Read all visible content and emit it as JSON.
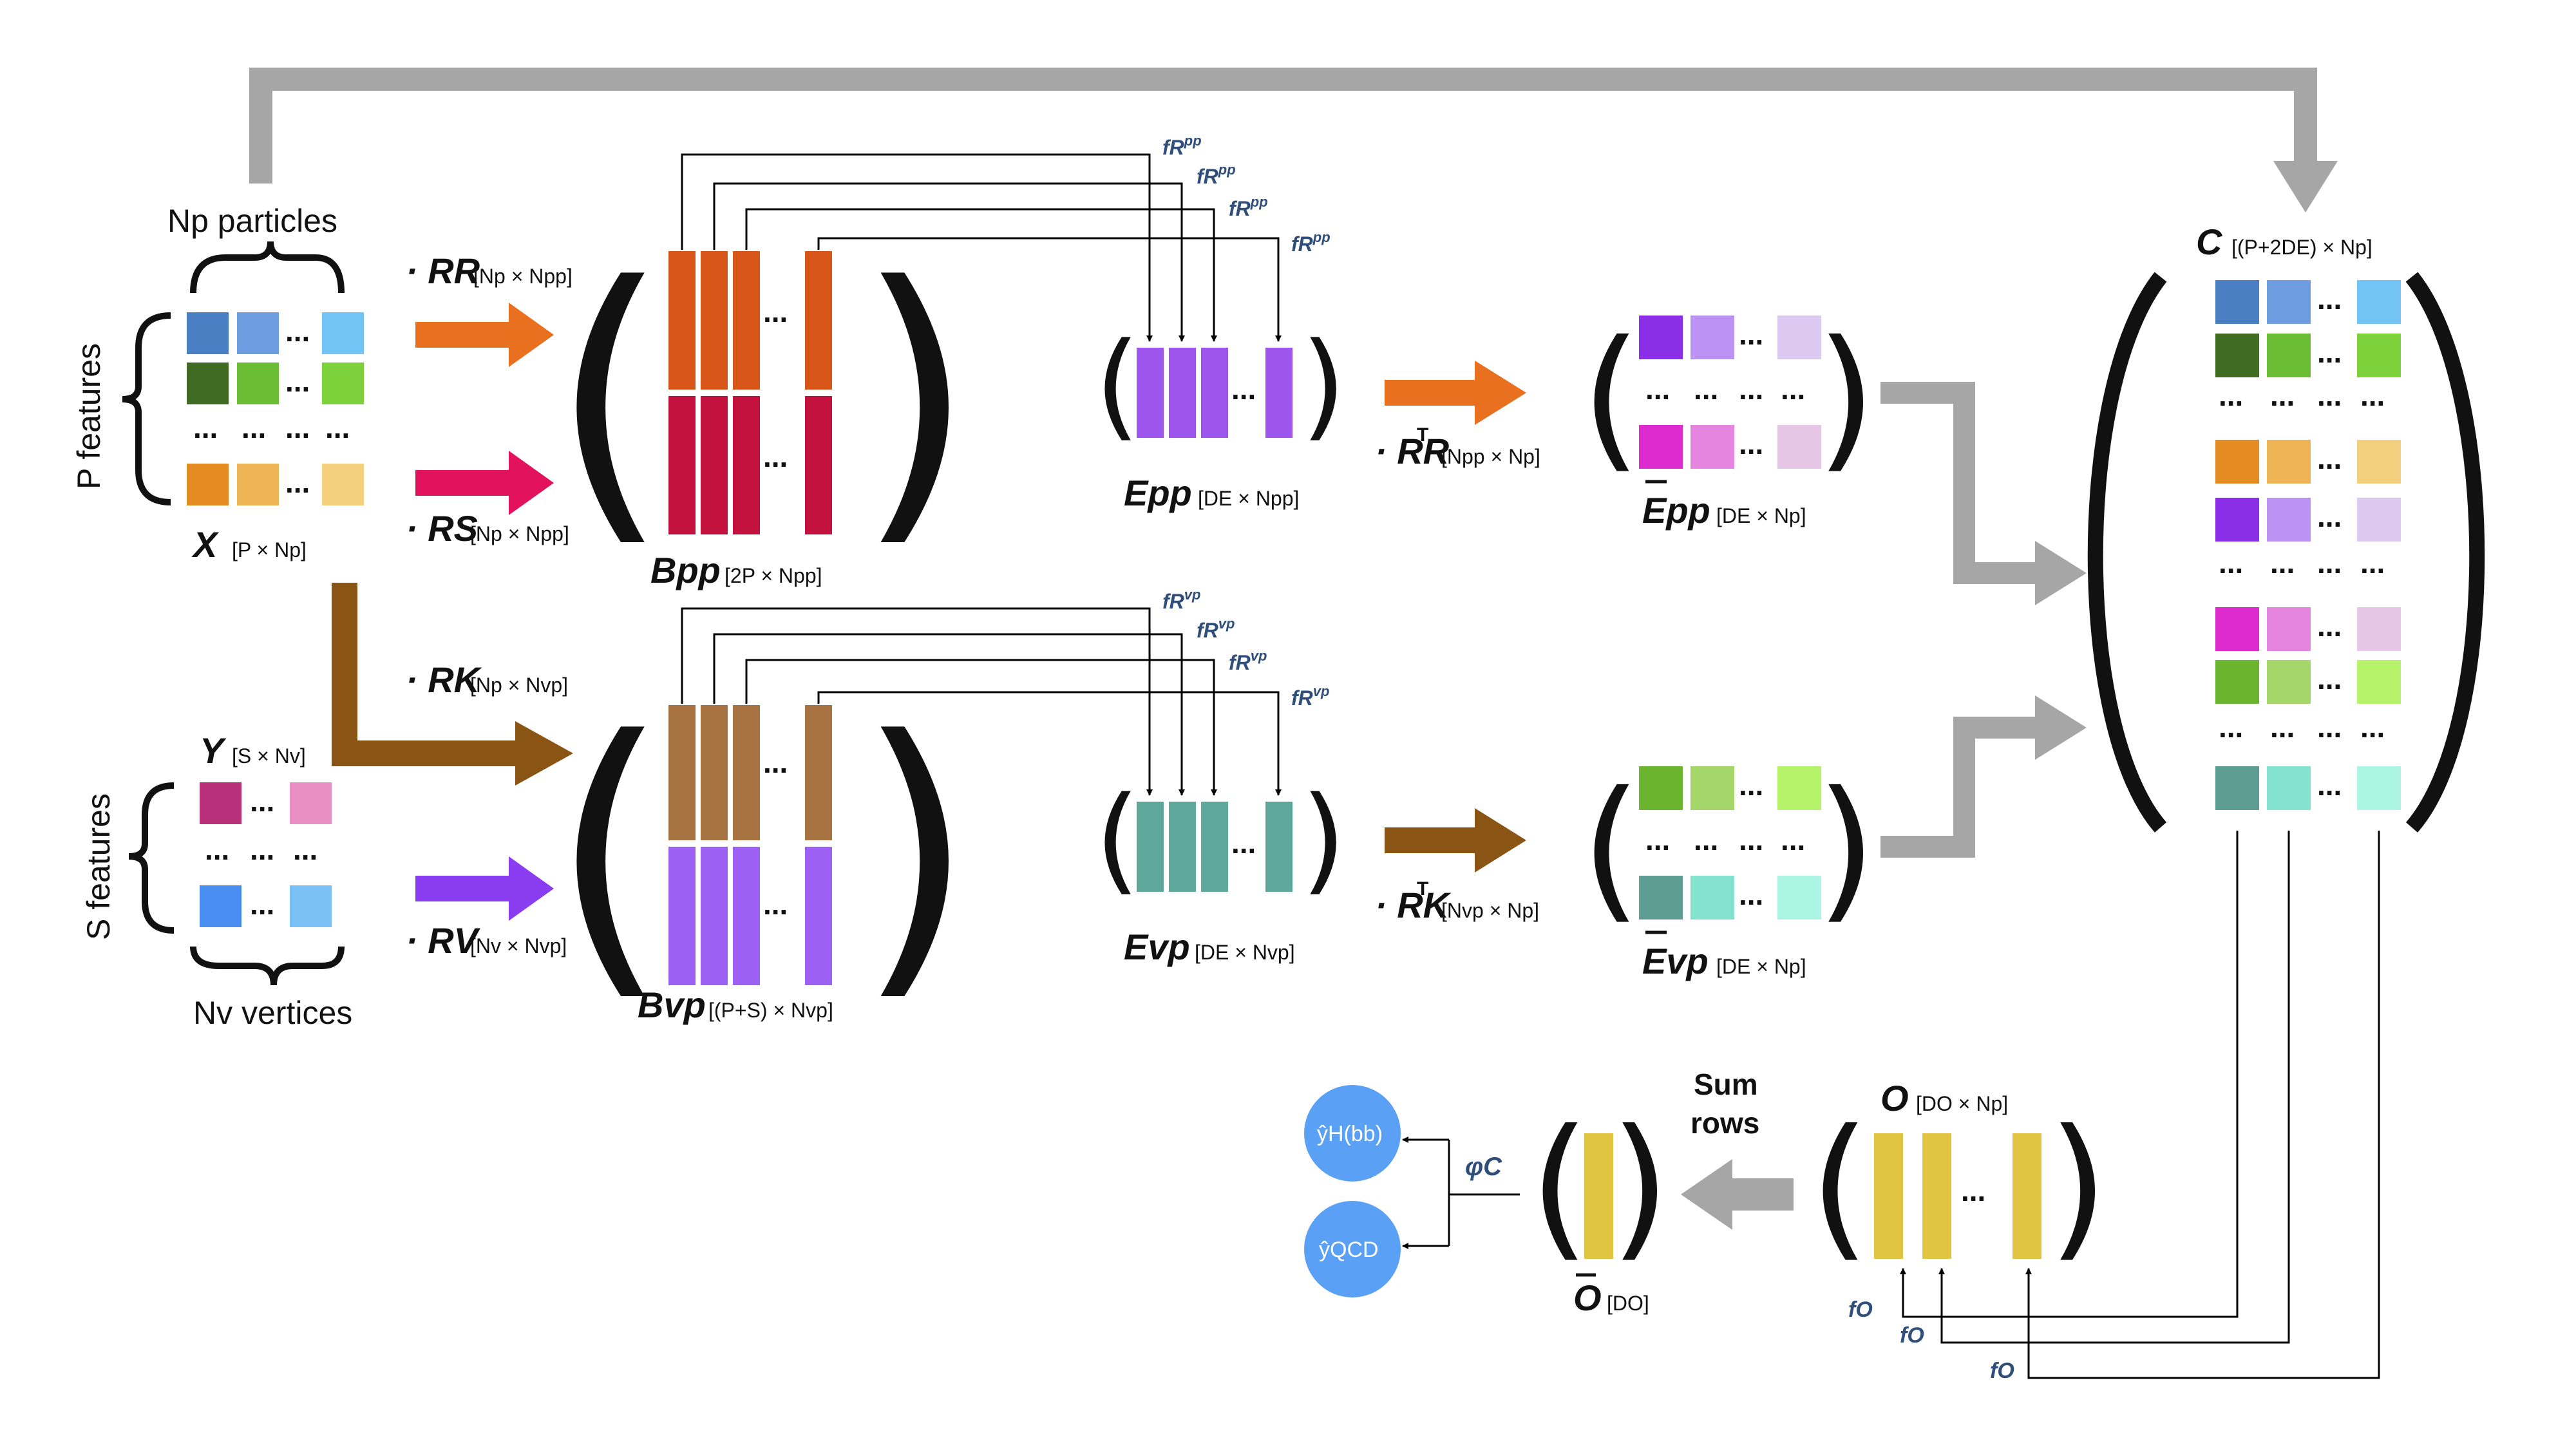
{
  "left": {
    "np_particles": "Np particles",
    "p_features": "P features",
    "s_features": "S features",
    "nv_vertices": "Nv vertices",
    "x_label": "X",
    "x_dims": "[P × Np]",
    "y_label": "Y",
    "y_dims": "[S × Nv]"
  },
  "operators": {
    "rr": "· RR",
    "rr_dims": "[Np × Npp]",
    "rs": "· RS",
    "rs_dims": "[Np × Npp]",
    "rk": "· RK",
    "rk_dims": "[Np × Nvp]",
    "rv": "· RV",
    "rv_dims": "[Nv × Nvp]",
    "rr_t": "· RR",
    "rr_t_dims": "[Npp × Np]",
    "rk_t": "· RK",
    "rk_t_dims": "[Nvp × Np]",
    "transpose": "T"
  },
  "matrices": {
    "bpp": "Bpp",
    "bpp_dims": "[2P × Npp]",
    "bvp": "Bvp",
    "bvp_dims": "[(P+S) × Nvp]",
    "epp": "Epp",
    "epp_dims": "[DE × Npp]",
    "evp": "Evp",
    "evp_dims": "[DE × Nvp]",
    "ebar_pp": "Epp",
    "ebar_pp_dims": "[DE × Np]",
    "ebar_vp": "Evp",
    "ebar_vp_dims": "[DE × Np]",
    "c": "C",
    "c_dims": "[(P+2DE) × Np]",
    "o": "O",
    "o_dims": "[DO × Np]",
    "obar": "O",
    "obar_dims": "[DO]"
  },
  "functions": {
    "f_r_pp": "fR",
    "pp_sup": "pp",
    "f_r_vp": "fR",
    "vp_sup": "vp",
    "f_o": "fO",
    "phi_c": "φC"
  },
  "outputs": {
    "sum_rows_1": "Sum",
    "sum_rows_2": "rows",
    "y_hbb": "ŷH(bb)",
    "y_qcd": "ŷQCD"
  },
  "dots": "...",
  "colors": {
    "orange_arrow": "#e8701f",
    "pink_arrow": "#e3125c",
    "brown_arrow": "#8a5414",
    "purple_arrow": "#8a3df0",
    "gray_arrow": "#a6a6a6",
    "output_circle": "#5aa0f5",
    "yellow": "#e2c443"
  }
}
